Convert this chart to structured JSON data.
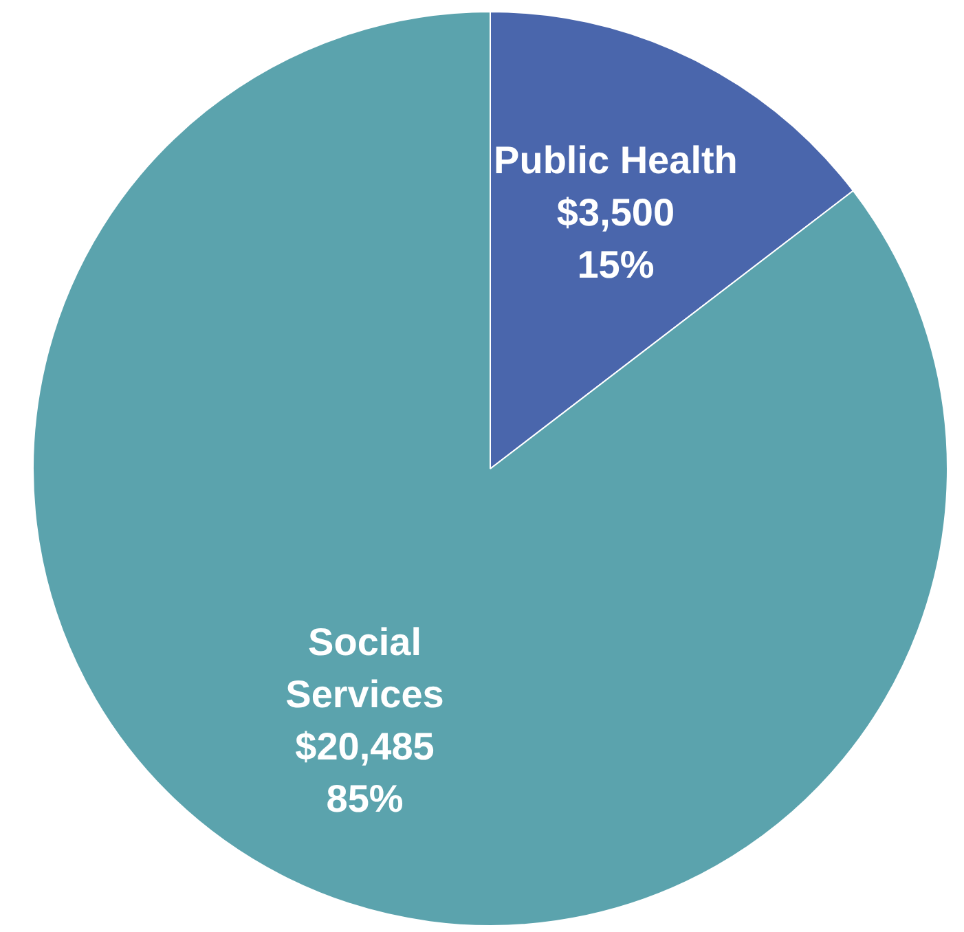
{
  "chart_data": {
    "type": "pie",
    "categories": [
      "Public Health",
      "Social Services"
    ],
    "values": [
      3500,
      20485
    ],
    "colors": [
      "#4a66ac",
      "#5ba3ad"
    ],
    "value_labels": [
      "$3,500\n15%",
      "$20,485\n85%"
    ],
    "legend": false
  }
}
